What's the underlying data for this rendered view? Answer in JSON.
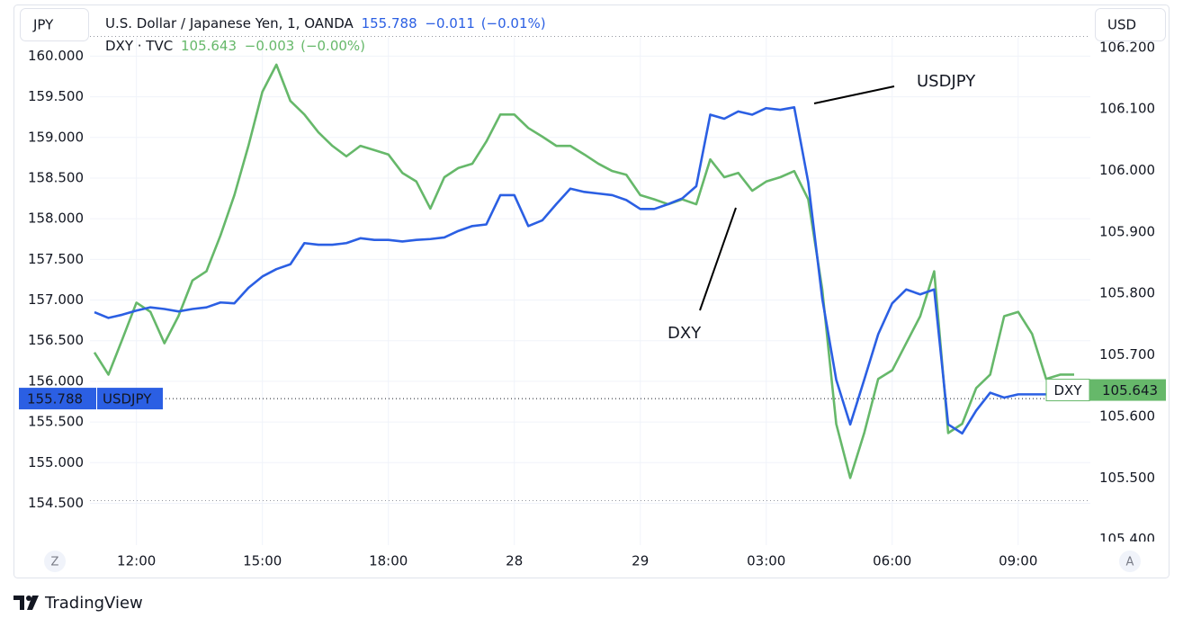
{
  "chart_data": {
    "type": "line",
    "y_unit": "JPY",
    "y2_unit": "USD",
    "brand": "TradingView",
    "scale_buttons": [
      "Z",
      "A"
    ],
    "grid": true,
    "categories": [
      null,
      null,
      null,
      "12:00",
      null,
      null,
      null,
      null,
      null,
      null,
      null,
      null,
      "15:00",
      null,
      null,
      null,
      null,
      null,
      null,
      null,
      null,
      "18:00",
      null,
      null,
      null,
      null,
      null,
      null,
      null,
      null,
      "28",
      null,
      null,
      null,
      null,
      null,
      null,
      null,
      null,
      "29",
      null,
      null,
      null,
      null,
      null,
      null,
      null,
      null,
      "03:00",
      null,
      null,
      null,
      null,
      null,
      null,
      null,
      null,
      "06:00",
      null,
      null,
      null,
      null,
      null,
      null,
      null,
      null,
      "09:00",
      null,
      null,
      null,
      null
    ],
    "ylim": [
      153.98,
      160.22
    ],
    "yticks": [
      {
        "value": 154.5,
        "label": "154.500"
      },
      {
        "value": 155,
        "label": "155.000"
      },
      {
        "value": 155.5,
        "label": "155.500"
      },
      {
        "value": 156,
        "label": "156.000"
      },
      {
        "value": 156.5,
        "label": "156.500"
      },
      {
        "value": 157,
        "label": "157.000"
      },
      {
        "value": 157.5,
        "label": "157.500"
      },
      {
        "value": 158,
        "label": "158.000"
      },
      {
        "value": 158.5,
        "label": "158.500"
      },
      {
        "value": 159,
        "label": "159.000"
      },
      {
        "value": 159.5,
        "label": "159.500"
      },
      {
        "value": 160,
        "label": "160.000"
      }
    ],
    "y2lim": [
      105.39,
      106.215
    ],
    "y2ticks": [
      {
        "value": 105.4,
        "label": "105.400"
      },
      {
        "value": 105.5,
        "label": "105.500"
      },
      {
        "value": 105.6,
        "label": "105.600"
      },
      {
        "value": 105.7,
        "label": "105.700"
      },
      {
        "value": 105.8,
        "label": "105.800"
      },
      {
        "value": 105.9,
        "label": "105.900"
      },
      {
        "value": 106,
        "label": "106.000"
      },
      {
        "value": 106.1,
        "label": "106.100"
      },
      {
        "value": 106.2,
        "label": "106.200"
      }
    ],
    "series": [
      {
        "name": "USDJPY",
        "title": "U.S. Dollar / Japanese Yen, 1, OANDA",
        "color": "#2b5fe3",
        "axis": "y",
        "last_value": 155.788,
        "change": {
          "value": -0.011,
          "label": "−0.011"
        },
        "change_percent": {
          "value": -0.01,
          "label": "(−0.01%)"
        },
        "values": [
          156.85,
          156.78,
          156.82,
          156.87,
          156.91,
          156.89,
          156.86,
          156.89,
          156.91,
          156.97,
          156.96,
          157.15,
          157.29,
          157.38,
          157.44,
          157.7,
          157.68,
          157.68,
          157.7,
          157.76,
          157.74,
          157.74,
          157.72,
          157.74,
          157.75,
          157.77,
          157.85,
          157.91,
          157.93,
          158.29,
          158.29,
          157.91,
          157.98,
          158.18,
          158.37,
          158.33,
          158.31,
          158.29,
          158.23,
          158.12,
          158.12,
          158.18,
          158.25,
          158.4,
          159.28,
          159.23,
          159.32,
          159.28,
          159.36,
          159.34,
          159.37,
          158.45,
          157.02,
          156.02,
          155.47,
          156.02,
          156.58,
          156.96,
          157.13,
          157.07,
          157.13,
          155.47,
          155.36,
          155.64,
          155.86,
          155.8,
          155.84,
          155.84,
          155.84,
          155.78,
          null
        ]
      },
      {
        "name": "DXY",
        "title": "DXY · TVC",
        "color": "#66b86a",
        "axis": "y2",
        "last_value": 105.643,
        "change": {
          "value": -0.003,
          "label": "−0.003"
        },
        "change_percent": {
          "value": -0.0,
          "label": "(−0.00%)"
        },
        "values": [
          105.704,
          105.668,
          105.726,
          105.785,
          105.77,
          105.719,
          105.763,
          105.821,
          105.836,
          105.894,
          105.96,
          106.04,
          106.128,
          106.172,
          106.113,
          106.091,
          106.062,
          106.04,
          106.023,
          106.04,
          106.033,
          106.026,
          105.996,
          105.982,
          105.938,
          105.989,
          106.004,
          106.011,
          106.047,
          106.091,
          106.091,
          106.069,
          106.055,
          106.04,
          106.04,
          106.026,
          106.011,
          105.999,
          105.993,
          105.96,
          105.953,
          105.945,
          105.953,
          105.945,
          106.018,
          105.989,
          105.996,
          105.967,
          105.982,
          105.989,
          105.999,
          105.953,
          105.807,
          105.588,
          105.5,
          105.573,
          105.661,
          105.675,
          105.719,
          105.763,
          105.836,
          105.573,
          105.588,
          105.646,
          105.668,
          105.763,
          105.77,
          105.734,
          105.661,
          105.668,
          105.668
        ]
      }
    ],
    "annotations": [
      {
        "text": "USDJPY"
      },
      {
        "text": "DXY"
      }
    ]
  }
}
